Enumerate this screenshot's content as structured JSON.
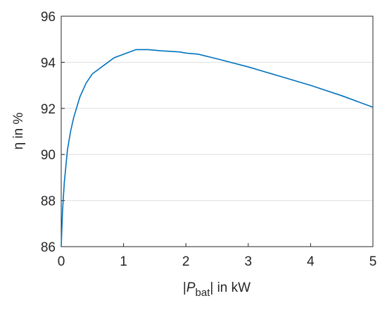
{
  "chart_data": {
    "type": "line",
    "ylabel": "η in %",
    "xlabel": {
      "parts": [
        "|",
        "P",
        "bat",
        "| in kW"
      ]
    },
    "x": [
      0,
      0.02,
      0.05,
      0.1,
      0.15,
      0.2,
      0.3,
      0.4,
      0.5,
      0.55,
      0.7,
      0.85,
      1.0,
      1.2,
      1.4,
      1.6,
      1.9,
      2.0,
      2.2,
      2.5,
      3.0,
      3.5,
      4.0,
      4.5,
      5.0
    ],
    "series": [
      {
        "color": "#0072bd",
        "values": [
          86.0,
          87.5,
          88.8,
          90.2,
          91.0,
          91.6,
          92.5,
          93.1,
          93.5,
          93.6,
          93.9,
          94.2,
          94.35,
          94.55,
          94.55,
          94.5,
          94.45,
          94.4,
          94.35,
          94.15,
          93.8,
          93.4,
          93.0,
          92.55,
          92.05
        ]
      }
    ],
    "xlim": [
      0,
      5
    ],
    "xticks": [
      0,
      1,
      2,
      3,
      4,
      5
    ],
    "ylim": [
      86,
      96
    ],
    "yticks": [
      86,
      88,
      90,
      92,
      94,
      96
    ],
    "grid": "y"
  }
}
